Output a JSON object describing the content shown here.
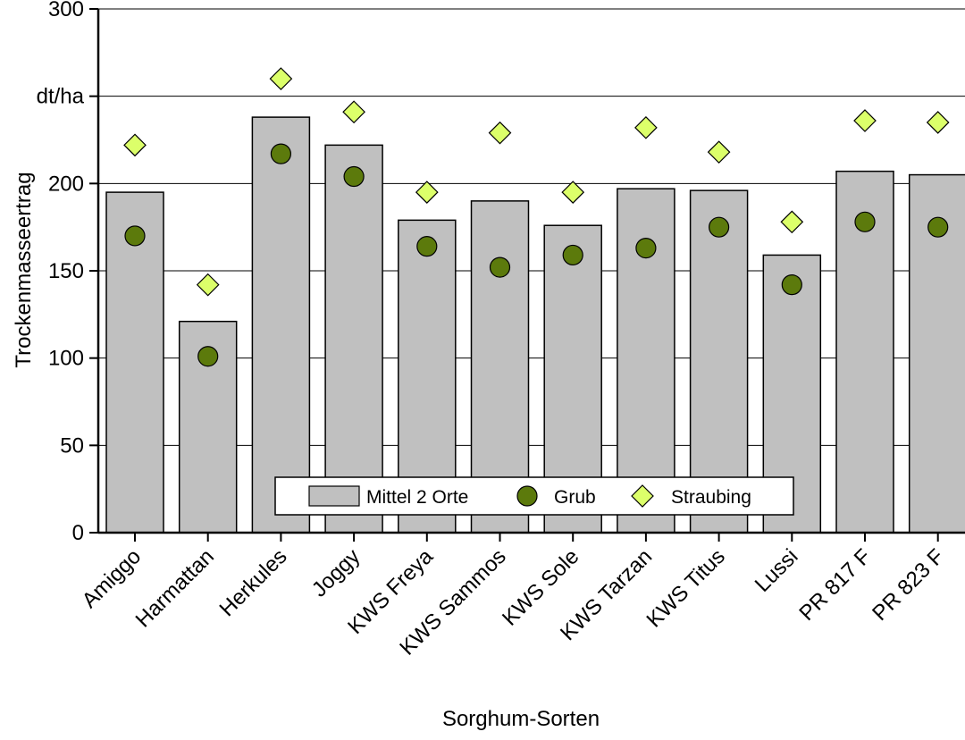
{
  "chart_data": {
    "type": "bar",
    "title": "",
    "xlabel": "Sorghum-Sorten",
    "ylabel": "Trockenmasseertrag",
    "ylim": [
      0,
      300
    ],
    "yticks": [
      "0",
      "50",
      "100",
      "150",
      "200",
      "dt/ha",
      "300"
    ],
    "ytick_values": [
      0,
      50,
      100,
      150,
      200,
      250,
      300
    ],
    "grid": "horizontal",
    "legend_position": "bottom-center",
    "categories": [
      "Amiggo",
      "Harmattan",
      "Herkules",
      "Joggy",
      "KWS Freya",
      "KWS Sammos",
      "KWS Sole",
      "KWS Tarzan",
      "KWS Titus",
      "Lussi",
      "PR 817 F",
      "PR 823 F"
    ],
    "series": [
      {
        "name": "Mittel 2 Orte",
        "kind": "bar",
        "color": "#c0c0c0",
        "values": [
          195,
          121,
          238,
          222,
          179,
          190,
          176,
          197,
          196,
          159,
          207,
          205
        ]
      },
      {
        "name": "Grub",
        "kind": "circle",
        "color": "#5c7a0c",
        "values": [
          170,
          101,
          217,
          204,
          164,
          152,
          159,
          163,
          175,
          142,
          178,
          175
        ]
      },
      {
        "name": "Straubing",
        "kind": "diamond",
        "color": "#dcff6a",
        "values": [
          222,
          142,
          260,
          241,
          195,
          229,
          195,
          232,
          218,
          178,
          236,
          235
        ]
      }
    ]
  }
}
